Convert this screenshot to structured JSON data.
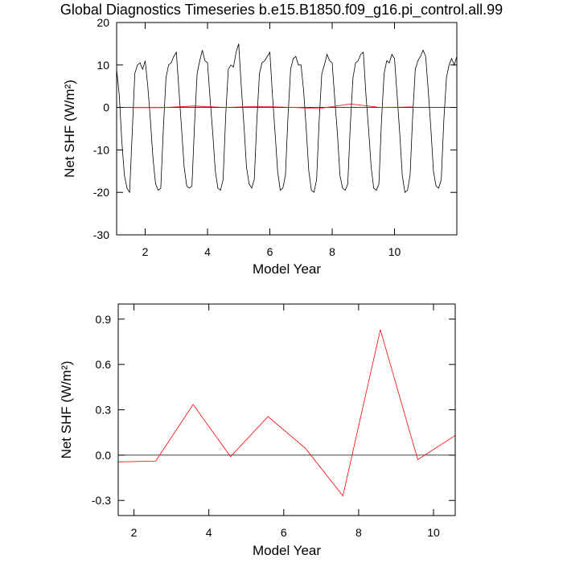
{
  "chart_data": [
    {
      "type": "line",
      "title": "Global Diagnostics Timeseries b.e15.B1850.f09_g16.pi_control.all.99",
      "xlabel": "Model Year",
      "ylabel": "Net SHF (W/m²)",
      "xlim": [
        1.083,
        12
      ],
      "ylim": [
        -30,
        20
      ],
      "xticks": [
        2,
        4,
        6,
        8,
        10
      ],
      "yticks": [
        20,
        10,
        0,
        -10,
        -20,
        -30
      ],
      "reference_line": 0,
      "series": [
        {
          "color": "#000000",
          "x": [
            1.083,
            1.167,
            1.25,
            1.333,
            1.417,
            1.5,
            1.583,
            1.667,
            1.75,
            1.833,
            1.917,
            2,
            2.083,
            2.167,
            2.25,
            2.333,
            2.417,
            2.5,
            2.583,
            2.667,
            2.75,
            2.833,
            2.917,
            3,
            3.083,
            3.167,
            3.25,
            3.333,
            3.417,
            3.5,
            3.583,
            3.667,
            3.75,
            3.833,
            3.917,
            4,
            4.083,
            4.167,
            4.25,
            4.333,
            4.417,
            4.5,
            4.583,
            4.667,
            4.75,
            4.833,
            4.917,
            5,
            5.083,
            5.167,
            5.25,
            5.333,
            5.417,
            5.5,
            5.583,
            5.667,
            5.75,
            5.833,
            5.917,
            6,
            6.083,
            6.167,
            6.25,
            6.333,
            6.417,
            6.5,
            6.583,
            6.667,
            6.75,
            6.833,
            6.917,
            7,
            7.083,
            7.167,
            7.25,
            7.333,
            7.417,
            7.5,
            7.583,
            7.667,
            7.75,
            7.833,
            7.917,
            8,
            8.083,
            8.167,
            8.25,
            8.333,
            8.417,
            8.5,
            8.583,
            8.667,
            8.75,
            8.833,
            8.917,
            9,
            9.083,
            9.167,
            9.25,
            9.333,
            9.417,
            9.5,
            9.583,
            9.667,
            9.75,
            9.833,
            9.917,
            10,
            10.083,
            10.167,
            10.25,
            10.333,
            10.417,
            10.5,
            10.583,
            10.667,
            10.75,
            10.833,
            10.917,
            11,
            11.083,
            11.167,
            11.25,
            11.333,
            11.417,
            11.5,
            11.583,
            11.667,
            11.75,
            11.833,
            11.917,
            12
          ],
          "values": [
            9,
            3,
            -8,
            -16,
            -19,
            -20,
            -6,
            8,
            10,
            10.5,
            9,
            11,
            5,
            -3,
            -12,
            -18,
            -19.5,
            -19,
            -5,
            7,
            10,
            10.5,
            12,
            13,
            4,
            -5,
            -14,
            -18.5,
            -19,
            -18.5,
            -4,
            8,
            11,
            13.5,
            11,
            10.5,
            2,
            -6,
            -15,
            -19,
            -19.5,
            -17,
            -2,
            9,
            10,
            9.5,
            13,
            15,
            5,
            -4,
            -14,
            -18,
            -19,
            -17,
            -3,
            8,
            10.5,
            11,
            12,
            13,
            3,
            -6,
            -15,
            -19.5,
            -19,
            -16,
            -2,
            9,
            11.5,
            12,
            10,
            10,
            4,
            -5,
            -15,
            -19.5,
            -20,
            -17,
            -3,
            8,
            10,
            12.5,
            11,
            10.5,
            2,
            -6,
            -16,
            -19,
            -19.5,
            -18,
            -4,
            7,
            10.5,
            11,
            12.5,
            13,
            3,
            -5,
            -14,
            -19,
            -19.5,
            -18,
            -3,
            8,
            11,
            10.5,
            12.5,
            11.5,
            3,
            -6,
            -16,
            -20,
            -19.5,
            -16,
            -2,
            9,
            11,
            12,
            13.5,
            12,
            4,
            -5,
            -15,
            -18.5,
            -19,
            -17,
            -3,
            7,
            10,
            11.5,
            10,
            12
          ]
        },
        {
          "color": "#ff0000",
          "x": [
            1.58,
            2.58,
            3.58,
            4.58,
            5.58,
            6.58,
            7.58,
            8.58,
            9.58,
            10.58
          ],
          "values": [
            -0.045,
            -0.04,
            0.335,
            -0.01,
            0.255,
            0.045,
            -0.27,
            0.83,
            -0.03,
            0.13
          ]
        }
      ]
    },
    {
      "type": "line",
      "xlabel": "Model Year",
      "ylabel": "Net SHF (W/m²)",
      "xlim": [
        1.58,
        10.58
      ],
      "ylim": [
        -0.4,
        1.0
      ],
      "xticks": [
        2,
        4,
        6,
        8,
        10
      ],
      "yticks": [
        0.9,
        0.6,
        0.3,
        {
          "value": 0,
          "label": "0.0"
        },
        -0.3
      ],
      "reference_line": 0,
      "series": [
        {
          "color": "#ff0000",
          "x": [
            1.58,
            2.58,
            3.58,
            4.58,
            5.58,
            6.58,
            7.58,
            8.58,
            9.58,
            10.58
          ],
          "values": [
            -0.045,
            -0.04,
            0.335,
            -0.01,
            0.255,
            0.045,
            -0.27,
            0.83,
            -0.03,
            0.13
          ]
        }
      ]
    }
  ]
}
